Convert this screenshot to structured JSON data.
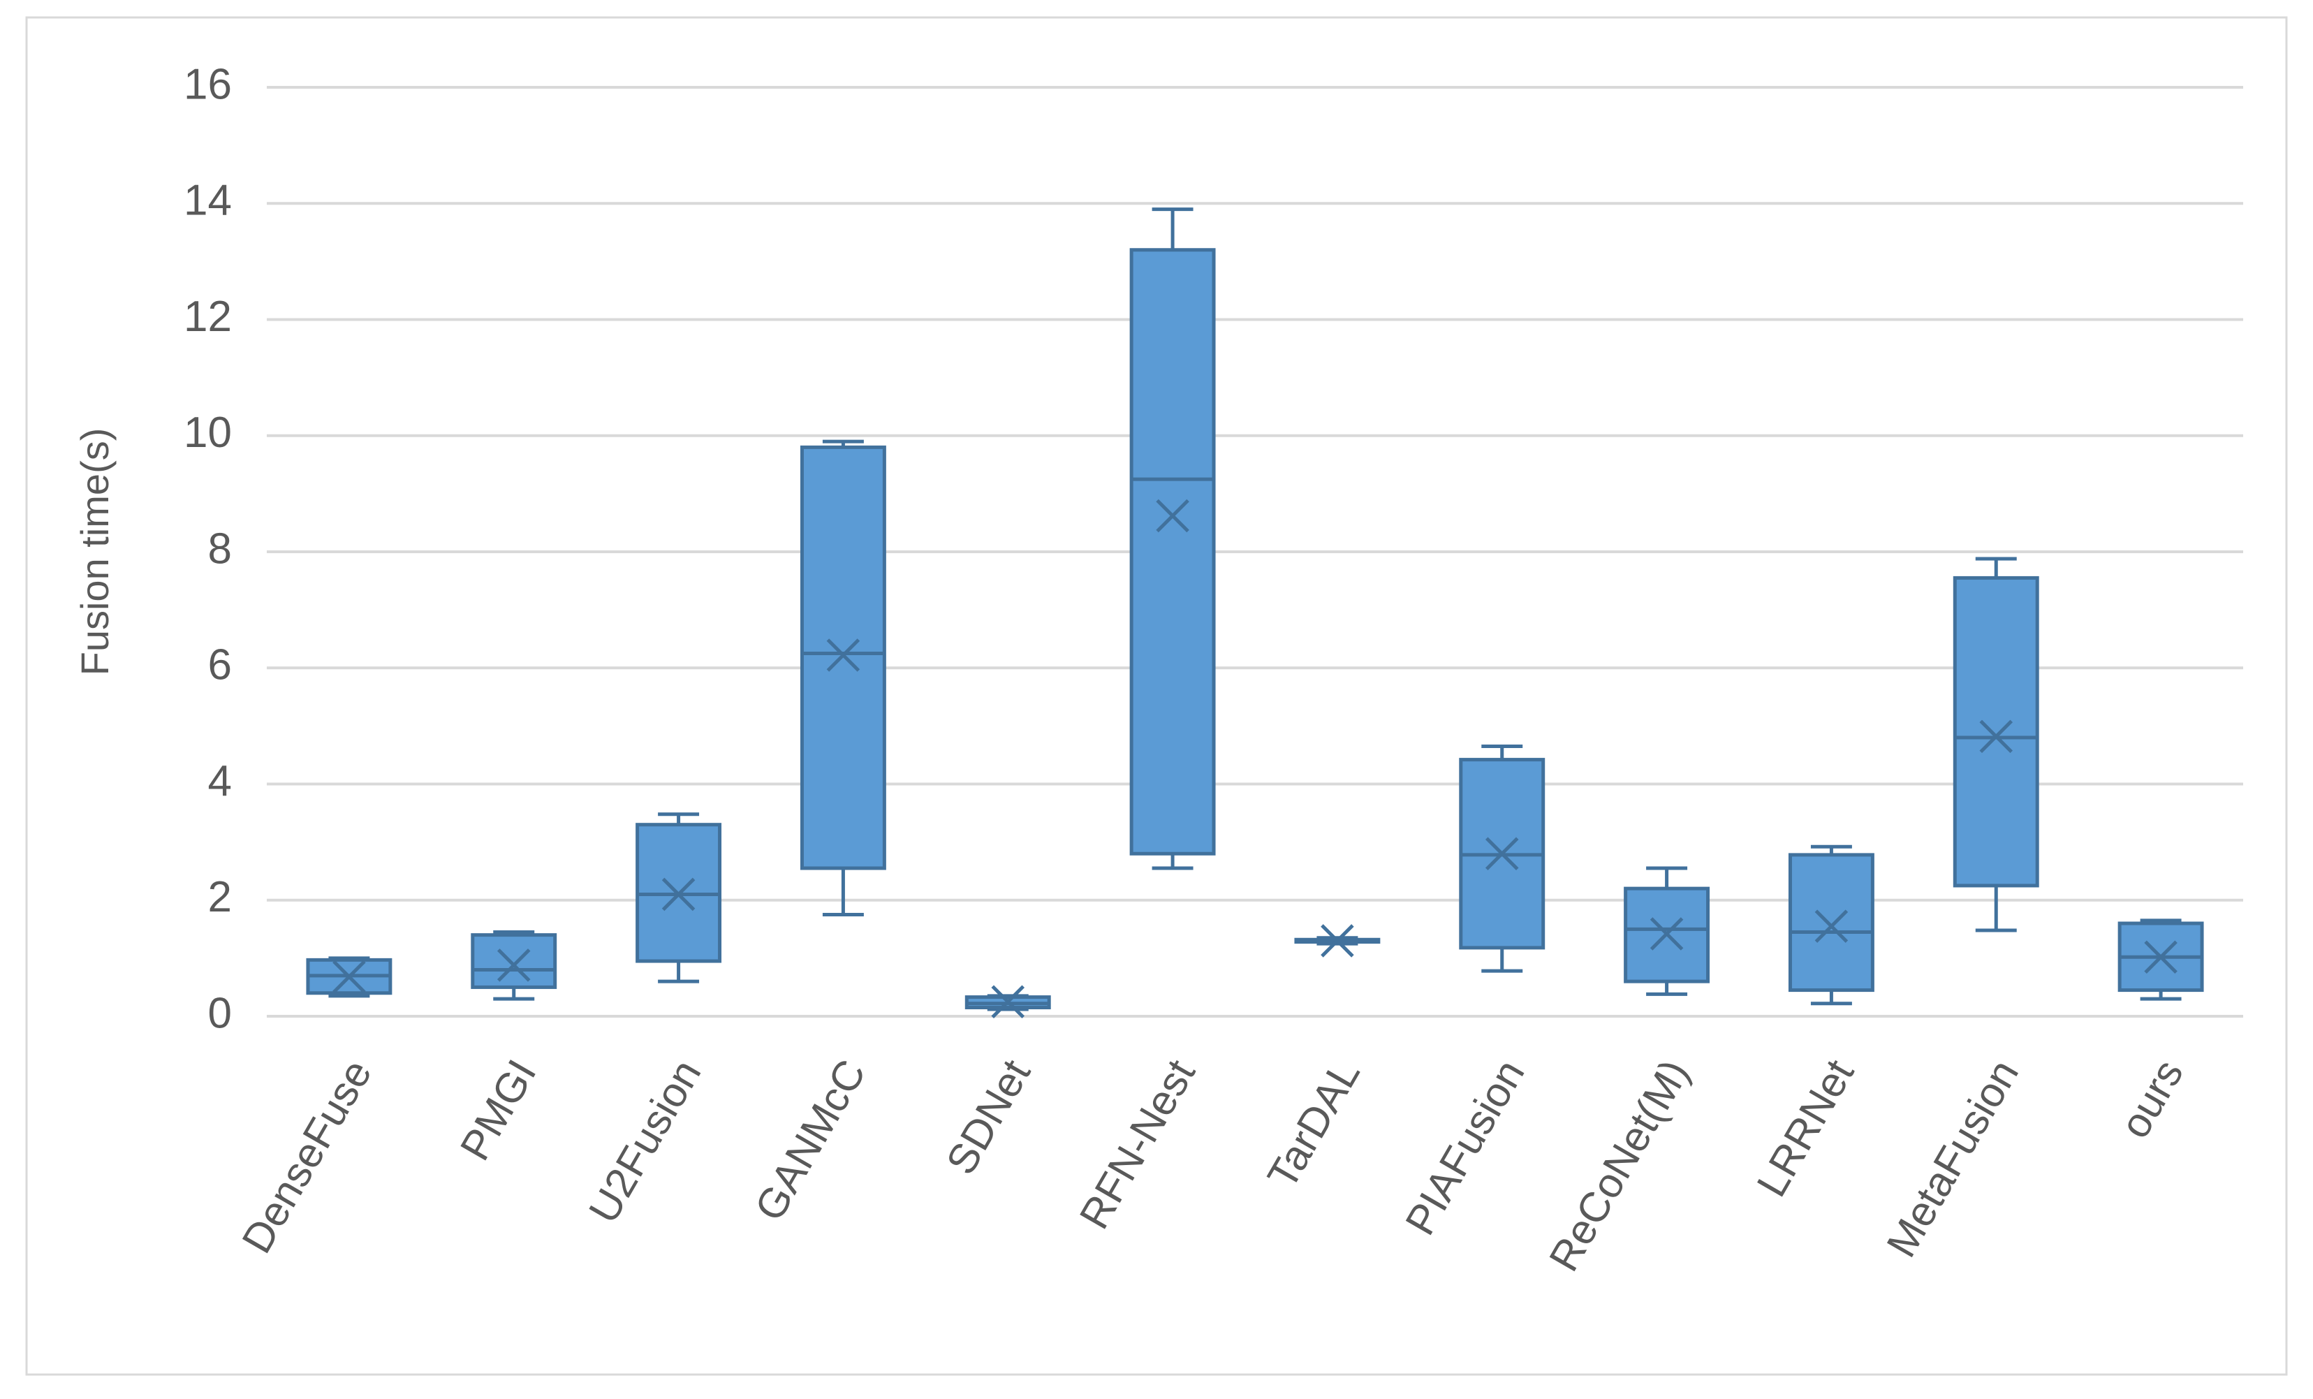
{
  "chart_data": {
    "type": "box",
    "ylabel": "Fusion time(s)",
    "categories": [
      "DenseFuse",
      "PMGI",
      "U2Fusion",
      "GANMcC",
      "SDNet",
      "RFN-Nest",
      "TarDAL",
      "PIAFusion",
      "ReCoNet(M)",
      "LRRNet",
      "MetaFusion",
      "ours"
    ],
    "min": [
      0.35,
      0.3,
      0.6,
      1.75,
      0.12,
      2.55,
      1.25,
      0.78,
      0.38,
      0.22,
      1.48,
      0.3
    ],
    "q1": [
      0.4,
      0.5,
      0.95,
      2.55,
      0.15,
      2.8,
      1.28,
      1.18,
      0.6,
      0.45,
      2.25,
      0.45
    ],
    "median": [
      0.7,
      0.8,
      2.1,
      6.25,
      0.22,
      9.25,
      1.3,
      2.78,
      1.5,
      1.45,
      4.8,
      1.02
    ],
    "q3": [
      0.97,
      1.4,
      3.3,
      9.8,
      0.33,
      13.2,
      1.32,
      4.42,
      2.2,
      2.78,
      7.55,
      1.6
    ],
    "max": [
      1.0,
      1.45,
      3.48,
      9.9,
      0.35,
      13.9,
      1.35,
      4.65,
      2.55,
      2.92,
      7.88,
      1.65
    ],
    "mean": [
      0.68,
      0.88,
      2.1,
      6.22,
      0.25,
      8.62,
      1.3,
      2.8,
      1.42,
      1.55,
      4.82,
      1.02
    ],
    "color": "#5b9bd5",
    "ylim": [
      0,
      16
    ],
    "yticks": [
      0,
      2,
      4,
      6,
      8,
      10,
      12,
      14,
      16
    ],
    "grid": true
  }
}
